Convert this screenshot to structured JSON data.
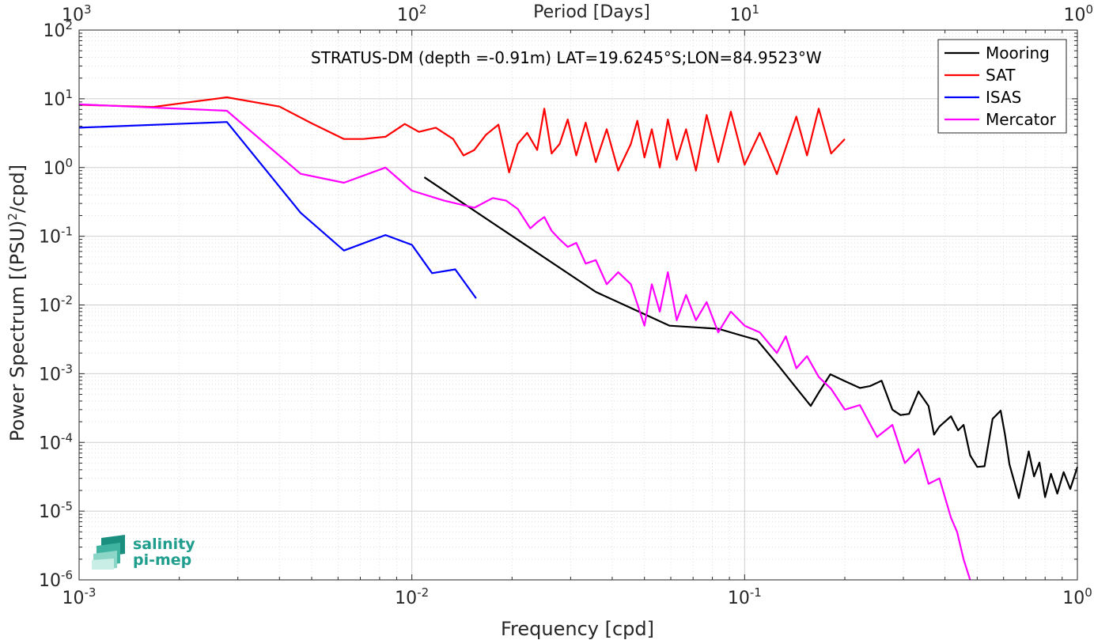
{
  "chart_data": {
    "type": "line",
    "title": "",
    "annotation": "STRATUS-DM (depth =-0.91m) LAT=19.6245°S;LON=84.9523°W",
    "xlabel": "Frequency [cpd]",
    "ylabel_main": "Power Spectrum [(PSU)",
    "ylabel_sup": "2",
    "ylabel_tail": "/cpd]",
    "top_xlabel": "Period [Days]",
    "x_scale": "log",
    "y_scale": "log",
    "xlim": [
      0.001,
      1
    ],
    "ylim": [
      1e-06,
      100
    ],
    "grid": true,
    "legend_position": "top-right",
    "x_ticks": [
      {
        "v": 0.001,
        "base": "10",
        "exp": "-3"
      },
      {
        "v": 0.01,
        "base": "10",
        "exp": "-2"
      },
      {
        "v": 0.1,
        "base": "10",
        "exp": "-1"
      },
      {
        "v": 1,
        "base": "10",
        "exp": "0"
      }
    ],
    "y_ticks": [
      {
        "v": 1e-06,
        "base": "10",
        "exp": "-6"
      },
      {
        "v": 1e-05,
        "base": "10",
        "exp": "-5"
      },
      {
        "v": 0.0001,
        "base": "10",
        "exp": "-4"
      },
      {
        "v": 0.001,
        "base": "10",
        "exp": "-3"
      },
      {
        "v": 0.01,
        "base": "10",
        "exp": "-2"
      },
      {
        "v": 0.1,
        "base": "10",
        "exp": "-1"
      },
      {
        "v": 1,
        "base": "10",
        "exp": "0"
      },
      {
        "v": 10,
        "base": "10",
        "exp": "1"
      },
      {
        "v": 100,
        "base": "10",
        "exp": "2"
      }
    ],
    "top_ticks": [
      {
        "v": 0.001,
        "base": "10",
        "exp": "3"
      },
      {
        "v": 0.01,
        "base": "10",
        "exp": "2"
      },
      {
        "v": 0.1,
        "base": "10",
        "exp": "1"
      },
      {
        "v": 1,
        "base": "10",
        "exp": "0"
      }
    ],
    "series": [
      {
        "name": "Mooring",
        "color": "#000000",
        "x": [
          0.0109,
          0.0357,
          0.0595,
          0.0833,
          0.0976,
          0.109,
          0.125,
          0.143,
          0.158,
          0.167,
          0.181,
          0.2,
          0.222,
          0.238,
          0.258,
          0.278,
          0.294,
          0.312,
          0.333,
          0.357,
          0.371,
          0.385,
          0.417,
          0.438,
          0.455,
          0.476,
          0.5,
          0.526,
          0.556,
          0.588,
          0.606,
          0.625,
          0.667,
          0.714,
          0.741,
          0.769,
          0.8,
          0.833,
          0.87,
          0.909,
          0.952,
          1.0
        ],
        "y": [
          0.72,
          0.0155,
          0.005,
          0.0045,
          0.0036,
          0.0031,
          0.0014,
          0.00062,
          0.00034,
          0.00053,
          0.00098,
          0.00078,
          0.00062,
          0.00066,
          0.00079,
          0.0003,
          0.00025,
          0.00026,
          0.00055,
          0.00034,
          0.00013,
          0.00017,
          0.00024,
          0.00015,
          0.00018,
          6.5e-05,
          4.4e-05,
          4.5e-05,
          0.00022,
          0.00029,
          0.00013,
          4.8e-05,
          1.55e-05,
          7.4e-05,
          3.2e-05,
          5.1e-05,
          1.6e-05,
          3.5e-05,
          1.8e-05,
          3.7e-05,
          2.1e-05,
          4.4e-05
        ]
      },
      {
        "name": "SAT",
        "color": "#ff0000",
        "x": [
          0.001,
          0.00167,
          0.00278,
          0.004,
          0.005,
          0.00625,
          0.00714,
          0.00833,
          0.00952,
          0.0105,
          0.0118,
          0.0133,
          0.0143,
          0.0154,
          0.0167,
          0.0182,
          0.0196,
          0.0208,
          0.0222,
          0.0238,
          0.025,
          0.0263,
          0.0278,
          0.0294,
          0.0312,
          0.0333,
          0.0357,
          0.0385,
          0.0417,
          0.0455,
          0.0476,
          0.05,
          0.0526,
          0.0556,
          0.0588,
          0.0625,
          0.0667,
          0.0714,
          0.0769,
          0.0833,
          0.0909,
          0.1,
          0.111,
          0.125,
          0.143,
          0.154,
          0.167,
          0.182,
          0.2
        ],
        "y": [
          8.2,
          7.6,
          10.5,
          7.7,
          4.4,
          2.6,
          2.6,
          2.8,
          4.3,
          3.3,
          3.8,
          2.6,
          1.5,
          1.8,
          3.0,
          4.2,
          0.85,
          2.2,
          3.2,
          1.8,
          7.2,
          1.6,
          2.2,
          5.0,
          1.5,
          4.5,
          1.2,
          3.6,
          0.9,
          2.2,
          4.8,
          1.4,
          3.6,
          1.0,
          5.0,
          1.3,
          3.6,
          0.9,
          5.8,
          1.2,
          6.5,
          1.1,
          3.2,
          0.8,
          5.5,
          1.5,
          7.2,
          1.6,
          2.6
        ]
      },
      {
        "name": "ISAS",
        "color": "#0000ff",
        "x": [
          0.001,
          0.00278,
          0.00463,
          0.00625,
          0.00833,
          0.01,
          0.0115,
          0.0135,
          0.0156
        ],
        "y": [
          3.8,
          4.6,
          0.22,
          0.062,
          0.104,
          0.075,
          0.029,
          0.033,
          0.0125
        ]
      },
      {
        "name": "Mercator",
        "color": "#ff00ff",
        "x": [
          0.001,
          0.00278,
          0.00463,
          0.00625,
          0.00833,
          0.01,
          0.0125,
          0.0154,
          0.0175,
          0.0192,
          0.0208,
          0.0227,
          0.0238,
          0.025,
          0.0263,
          0.0278,
          0.0294,
          0.0312,
          0.0333,
          0.0357,
          0.0385,
          0.0417,
          0.0455,
          0.05,
          0.0526,
          0.0556,
          0.0588,
          0.0625,
          0.0667,
          0.0714,
          0.0769,
          0.0833,
          0.0909,
          0.1,
          0.111,
          0.125,
          0.133,
          0.143,
          0.154,
          0.167,
          0.182,
          0.2,
          0.222,
          0.25,
          0.278,
          0.303,
          0.333,
          0.357,
          0.385,
          0.417,
          0.435,
          0.455,
          0.476
        ],
        "y": [
          8.3,
          6.7,
          0.81,
          0.6,
          1.0,
          0.46,
          0.33,
          0.26,
          0.36,
          0.33,
          0.25,
          0.13,
          0.16,
          0.19,
          0.12,
          0.09,
          0.07,
          0.08,
          0.04,
          0.045,
          0.02,
          0.03,
          0.02,
          0.005,
          0.02,
          0.008,
          0.03,
          0.006,
          0.014,
          0.006,
          0.011,
          0.004,
          0.008,
          0.005,
          0.004,
          0.002,
          0.0035,
          0.0012,
          0.0018,
          0.0009,
          0.0006,
          0.0003,
          0.00035,
          0.00012,
          0.00018,
          5e-05,
          8e-05,
          2.5e-05,
          3e-05,
          8e-06,
          5e-06,
          2e-06,
          1e-06
        ]
      }
    ]
  },
  "logo": {
    "line1": "salinity",
    "line2": "pi-mep"
  }
}
